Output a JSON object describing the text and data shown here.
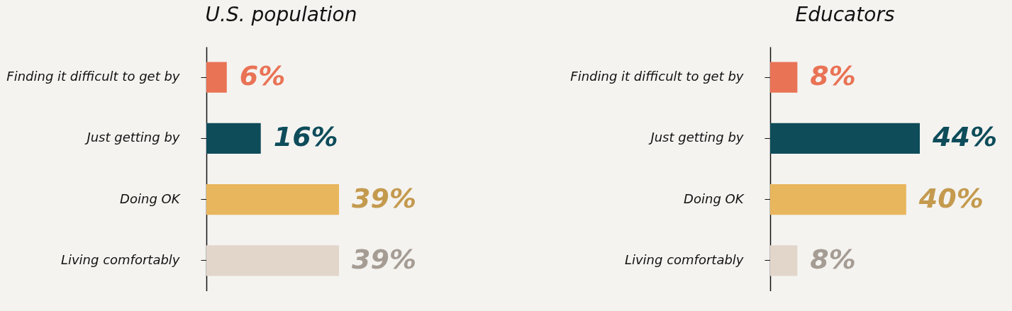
{
  "chart_data": [
    {
      "type": "bar",
      "orientation": "horizontal",
      "title": "U.S. population",
      "categories": [
        "Finding it difficult to get by",
        "Just getting by",
        "Doing OK",
        "Living comfortably"
      ],
      "values": [
        6,
        16,
        39,
        39
      ],
      "colors": [
        "#e97355",
        "#0e4c5a",
        "#e8b65c",
        "#e2d6cb"
      ],
      "value_labels": [
        "6%",
        "16%",
        "39%",
        "39%"
      ]
    },
    {
      "type": "bar",
      "orientation": "horizontal",
      "title": "Educators",
      "categories": [
        "Finding it difficult to get by",
        "Just getting by",
        "Doing OK",
        "Living comfortably"
      ],
      "values": [
        8,
        44,
        40,
        8
      ],
      "colors": [
        "#e97355",
        "#0e4c5a",
        "#e8b65c",
        "#e2d6cb"
      ],
      "value_labels": [
        "8%",
        "44%",
        "40%",
        "8%"
      ]
    }
  ]
}
